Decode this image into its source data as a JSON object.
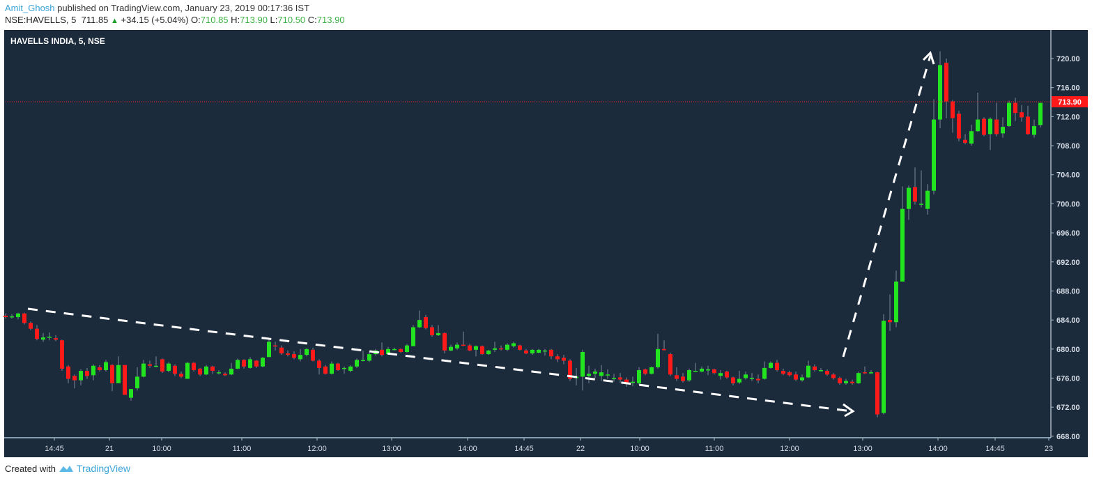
{
  "header": {
    "author": "Amit_Ghosh",
    "published_text": "published on TradingView.com, January 23, 2019 00:17:36 IST",
    "symbol": "NSE:HAVELLS, 5",
    "last": "711.85",
    "change": "+34.15 (+5.04%)",
    "o_label": "O:",
    "o": "710.85",
    "h_label": "H:",
    "h": "713.90",
    "l_label": "L:",
    "l": "710.50",
    "c_label": "C:",
    "c": "713.90"
  },
  "chart_title": "HAVELLS INDIA, 5, NSE",
  "footer": {
    "created_with": "Created with",
    "brand": "TradingView"
  },
  "colors": {
    "background": "#1c2b3c",
    "up": "#22e51f",
    "down": "#ff1a1a",
    "wick": "#7d8896",
    "price_line": "#ff2020",
    "axis_text": "#d6dde6",
    "annotation": "#ffffff"
  },
  "chart_data": {
    "type": "candlestick",
    "title": "HAVELLS INDIA, 5, NSE",
    "ylim": [
      668,
      720
    ],
    "y_ticks": [
      "720.00",
      "716.00",
      "712.00",
      "708.00",
      "704.00",
      "700.00",
      "696.00",
      "692.00",
      "688.00",
      "684.00",
      "680.00",
      "676.00",
      "672.00",
      "668.00"
    ],
    "x_ticks": [
      "14:45",
      "21",
      "10:00",
      "11:00",
      "12:00",
      "13:00",
      "14:00",
      "14:45",
      "22",
      "10:00",
      "11:00",
      "12:00",
      "13:00",
      "14:00",
      "14:45",
      "23"
    ],
    "last_price_label": "713.90",
    "last_price": 713.9,
    "ohlc": [
      [
        684.6,
        684.9,
        684.2,
        684.4
      ],
      [
        684.5,
        684.8,
        684.2,
        684.5
      ],
      [
        684.4,
        685.0,
        684.1,
        684.9
      ],
      [
        684.9,
        685.0,
        683.4,
        683.6
      ],
      [
        683.6,
        683.8,
        682.6,
        682.8
      ],
      [
        682.8,
        683.3,
        681.2,
        681.4
      ],
      [
        681.3,
        682.2,
        681.0,
        681.6
      ],
      [
        681.6,
        682.3,
        681.2,
        681.7
      ],
      [
        681.5,
        681.9,
        681.1,
        681.3
      ],
      [
        681.2,
        681.3,
        677.0,
        677.3
      ],
      [
        677.6,
        677.8,
        675.3,
        675.9
      ],
      [
        676.3,
        676.5,
        674.6,
        675.7
      ],
      [
        675.7,
        677.2,
        675.0,
        677.0
      ],
      [
        677.0,
        677.4,
        675.9,
        676.3
      ],
      [
        676.4,
        677.9,
        675.7,
        677.7
      ],
      [
        677.5,
        677.8,
        676.9,
        677.1
      ],
      [
        677.1,
        678.5,
        676.9,
        678.2
      ],
      [
        677.8,
        677.9,
        674.2,
        675.3
      ],
      [
        675.3,
        679.0,
        675.3,
        677.8
      ],
      [
        677.8,
        677.8,
        673.7,
        673.7
      ],
      [
        673.3,
        674.5,
        672.9,
        674.5
      ],
      [
        674.6,
        677.5,
        674.3,
        676.2
      ],
      [
        676.2,
        678.5,
        676.1,
        678.0
      ],
      [
        677.9,
        678.4,
        677.4,
        677.7
      ],
      [
        677.6,
        679.0,
        677.5,
        677.7
      ],
      [
        678.6,
        678.7,
        676.7,
        676.9
      ],
      [
        677.0,
        678.2,
        676.8,
        678.0
      ],
      [
        677.7,
        677.9,
        676.3,
        676.6
      ],
      [
        676.6,
        676.9,
        676.0,
        676.2
      ],
      [
        675.9,
        678.2,
        675.9,
        678.1
      ],
      [
        678.1,
        678.2,
        676.9,
        677.1
      ],
      [
        677.3,
        677.4,
        676.3,
        676.5
      ],
      [
        676.5,
        677.8,
        676.4,
        677.6
      ],
      [
        677.6,
        677.7,
        676.6,
        677.0
      ],
      [
        676.8,
        677.1,
        676.5,
        676.8
      ],
      [
        676.6,
        676.8,
        676.3,
        676.4
      ],
      [
        676.5,
        678.1,
        676.4,
        677.3
      ],
      [
        677.3,
        678.7,
        677.2,
        678.5
      ],
      [
        678.5,
        678.6,
        677.3,
        677.6
      ],
      [
        677.4,
        678.9,
        677.3,
        678.6
      ],
      [
        678.4,
        678.5,
        677.4,
        677.6
      ],
      [
        677.6,
        678.9,
        677.5,
        678.8
      ],
      [
        678.9,
        681.3,
        678.9,
        681.0
      ],
      [
        680.5,
        681.0,
        679.8,
        680.4
      ],
      [
        680.2,
        680.5,
        679.2,
        679.4
      ],
      [
        679.4,
        679.8,
        679.0,
        679.2
      ],
      [
        679.3,
        679.7,
        678.6,
        678.8
      ],
      [
        678.6,
        680.0,
        678.3,
        679.2
      ],
      [
        679.2,
        680.1,
        679.0,
        680.0
      ],
      [
        679.9,
        680.2,
        678.3,
        678.4
      ],
      [
        678.4,
        678.6,
        676.5,
        677.4
      ],
      [
        677.6,
        677.8,
        676.5,
        676.6
      ],
      [
        676.6,
        678.3,
        676.5,
        678.0
      ],
      [
        678.0,
        678.1,
        677.0,
        677.1
      ],
      [
        677.4,
        677.6,
        676.6,
        677.4
      ],
      [
        677.0,
        677.8,
        676.8,
        677.6
      ],
      [
        677.6,
        678.7,
        677.4,
        678.5
      ],
      [
        678.5,
        679.8,
        678.3,
        678.5
      ],
      [
        678.4,
        679.7,
        678.2,
        679.3
      ],
      [
        679.3,
        680.0,
        679.1,
        679.8
      ],
      [
        679.9,
        680.9,
        679.0,
        679.2
      ],
      [
        679.3,
        680.3,
        679.2,
        680.0
      ],
      [
        680.0,
        680.2,
        679.8,
        680.0
      ],
      [
        680.0,
        680.1,
        679.5,
        679.6
      ],
      [
        679.6,
        680.7,
        679.5,
        680.5
      ],
      [
        680.4,
        683.3,
        680.4,
        683.0
      ],
      [
        683.0,
        685.3,
        682.9,
        684.0
      ],
      [
        684.4,
        684.7,
        682.7,
        682.9
      ],
      [
        683.0,
        683.3,
        681.7,
        681.9
      ],
      [
        681.9,
        683.3,
        681.8,
        682.2
      ],
      [
        682.2,
        682.3,
        679.4,
        679.8
      ],
      [
        679.8,
        680.6,
        679.7,
        680.3
      ],
      [
        680.1,
        680.9,
        679.9,
        680.6
      ],
      [
        680.6,
        682.4,
        680.4,
        680.5
      ],
      [
        680.5,
        680.7,
        679.7,
        679.8
      ],
      [
        679.9,
        680.5,
        679.0,
        680.4
      ],
      [
        680.4,
        680.5,
        679.2,
        679.3
      ],
      [
        679.3,
        679.9,
        679.2,
        679.8
      ],
      [
        679.9,
        681.0,
        679.6,
        680.1
      ],
      [
        680.1,
        680.5,
        679.8,
        680.0
      ],
      [
        679.9,
        680.8,
        679.7,
        680.6
      ],
      [
        680.4,
        681.0,
        680.2,
        680.8
      ],
      [
        680.5,
        680.6,
        679.8,
        679.9
      ],
      [
        679.8,
        680.0,
        679.3,
        679.4
      ],
      [
        679.4,
        680.0,
        679.2,
        679.9
      ],
      [
        679.5,
        680.0,
        679.4,
        679.9
      ],
      [
        679.8,
        680.0,
        679.1,
        679.8
      ],
      [
        679.9,
        680.0,
        678.6,
        679.0
      ],
      [
        679.0,
        679.3,
        678.2,
        678.6
      ],
      [
        678.8,
        679.2,
        677.9,
        678.4
      ],
      [
        678.4,
        678.6,
        675.6,
        675.9
      ],
      [
        676.0,
        677.4,
        675.0,
        676.2
      ],
      [
        676.2,
        679.9,
        674.3,
        679.6
      ],
      [
        676.3,
        677.7,
        675.3,
        676.6
      ],
      [
        676.6,
        677.3,
        676.0,
        676.9
      ],
      [
        676.3,
        677.8,
        675.6,
        676.8
      ],
      [
        676.5,
        677.2,
        675.9,
        676.5
      ],
      [
        676.0,
        676.6,
        675.5,
        676.0
      ],
      [
        676.1,
        676.7,
        675.3,
        675.8
      ],
      [
        675.8,
        676.1,
        674.8,
        675.2
      ],
      [
        675.5,
        676.2,
        674.9,
        675.5
      ],
      [
        675.3,
        677.5,
        675.1,
        677.1
      ],
      [
        677.2,
        677.3,
        676.4,
        676.6
      ],
      [
        676.6,
        677.6,
        676.5,
        677.5
      ],
      [
        677.5,
        682.1,
        677.3,
        680.0
      ],
      [
        680.0,
        681.2,
        679.8,
        679.9
      ],
      [
        679.3,
        679.5,
        676.3,
        676.5
      ],
      [
        676.4,
        677.5,
        675.6,
        675.9
      ],
      [
        676.2,
        676.7,
        675.4,
        675.6
      ],
      [
        675.7,
        677.3,
        675.5,
        677.1
      ],
      [
        677.0,
        678.1,
        676.9,
        677.0
      ],
      [
        676.9,
        677.6,
        676.8,
        677.3
      ],
      [
        677.2,
        677.7,
        676.4,
        677.2
      ],
      [
        677.2,
        677.3,
        676.5,
        676.7
      ],
      [
        676.3,
        677.1,
        675.8,
        676.7
      ],
      [
        676.9,
        677.0,
        675.9,
        676.1
      ],
      [
        676.1,
        676.2,
        675.0,
        675.3
      ],
      [
        675.4,
        677.0,
        675.2,
        675.9
      ],
      [
        676.0,
        676.9,
        675.8,
        676.5
      ],
      [
        676.0,
        676.7,
        675.6,
        676.0
      ],
      [
        675.9,
        676.5,
        675.3,
        675.7
      ],
      [
        675.9,
        678.3,
        675.8,
        677.4
      ],
      [
        677.4,
        678.3,
        677.3,
        678.1
      ],
      [
        678.1,
        678.5,
        676.9,
        677.1
      ],
      [
        677.0,
        677.3,
        676.4,
        676.6
      ],
      [
        676.8,
        677.0,
        676.2,
        676.4
      ],
      [
        676.5,
        676.9,
        675.6,
        675.8
      ],
      [
        675.7,
        676.5,
        675.5,
        676.1
      ],
      [
        676.1,
        678.4,
        676.0,
        677.7
      ],
      [
        677.6,
        677.9,
        676.9,
        677.1
      ],
      [
        677.1,
        677.4,
        676.9,
        677.1
      ],
      [
        677.0,
        677.2,
        676.3,
        676.5
      ],
      [
        676.5,
        676.7,
        675.8,
        676.0
      ],
      [
        676.0,
        676.2,
        675.1,
        675.3
      ],
      [
        675.3,
        675.9,
        675.1,
        675.6
      ],
      [
        675.5,
        675.8,
        675.1,
        675.3
      ],
      [
        675.3,
        676.9,
        675.2,
        676.7
      ],
      [
        676.8,
        677.6,
        676.6,
        676.7
      ],
      [
        676.8,
        677.1,
        676.6,
        676.8
      ],
      [
        676.8,
        676.9,
        670.6,
        671.0
      ],
      [
        671.2,
        684.8,
        671.0,
        683.9
      ],
      [
        684.0,
        687.5,
        682.5,
        683.7
      ],
      [
        683.7,
        690.8,
        683.0,
        689.3
      ],
      [
        689.3,
        702.4,
        689.3,
        699.3
      ],
      [
        699.3,
        702.5,
        697.8,
        702.2
      ],
      [
        702.3,
        705.0,
        699.9,
        700.3
      ],
      [
        700.0,
        704.6,
        699.5,
        700.0
      ],
      [
        699.3,
        702.7,
        698.5,
        701.8
      ],
      [
        701.8,
        714.4,
        701.3,
        711.6
      ],
      [
        711.6,
        721.0,
        710.4,
        719.1
      ],
      [
        719.4,
        720.0,
        711.8,
        714.1
      ],
      [
        714.1,
        714.3,
        709.8,
        711.8
      ],
      [
        712.4,
        712.8,
        708.6,
        709.0
      ],
      [
        708.8,
        709.6,
        708.2,
        708.4
      ],
      [
        708.3,
        710.9,
        708.0,
        710.0
      ],
      [
        710.0,
        715.3,
        709.9,
        711.6
      ],
      [
        711.7,
        711.9,
        709.3,
        709.5
      ],
      [
        709.6,
        711.9,
        707.4,
        711.7
      ],
      [
        711.6,
        713.9,
        709.3,
        709.6
      ],
      [
        709.7,
        711.9,
        709.1,
        710.6
      ],
      [
        710.7,
        714.2,
        710.6,
        713.9
      ],
      [
        713.9,
        714.6,
        711.4,
        712.5
      ],
      [
        712.6,
        713.6,
        711.3,
        711.9
      ],
      [
        712.0,
        713.5,
        709.5,
        709.6
      ],
      [
        709.5,
        711.6,
        709.1,
        710.7
      ],
      [
        710.85,
        713.9,
        710.5,
        713.9
      ]
    ]
  }
}
